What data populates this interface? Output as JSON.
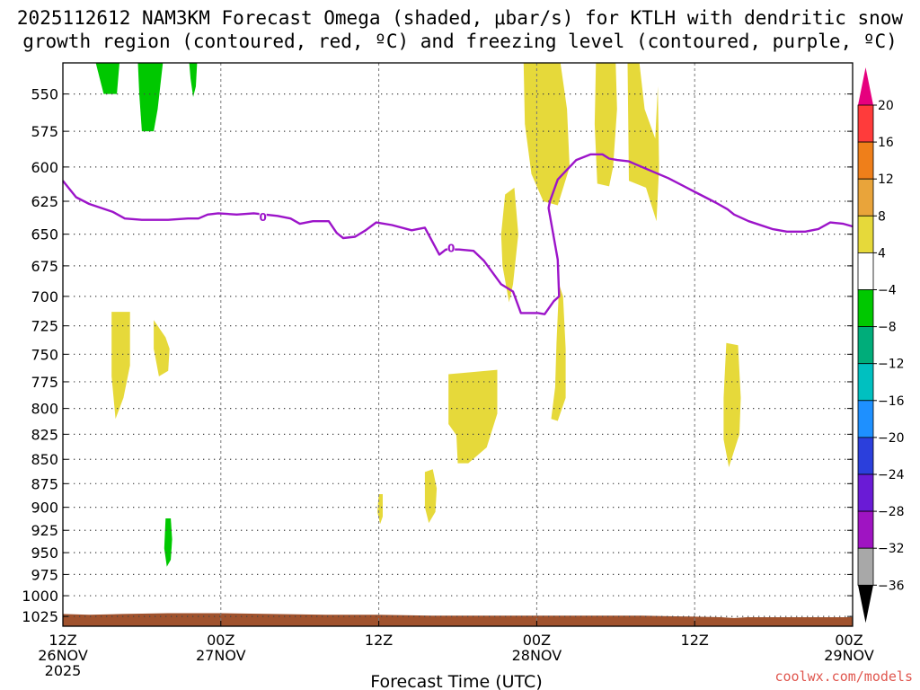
{
  "chart_data": {
    "type": "heatmap",
    "title_line1": "2025112612 NAM3KM Forecast Omega (shaded, μbar/s) for KTLH with dendritic snow",
    "title_line2": "growth region (contoured, red, ºC) and freezing level (contoured, purple, ºC)",
    "xlabel": "Forecast Time (UTC)",
    "credit": "coolwx.com/models",
    "x_range_hours": [
      0,
      60
    ],
    "x_ticks": [
      {
        "h": 0,
        "l1": "12Z",
        "l2": "26NOV",
        "l3": "2025"
      },
      {
        "h": 12,
        "l1": "00Z",
        "l2": "27NOV",
        "l3": ""
      },
      {
        "h": 24,
        "l1": "12Z",
        "l2": "",
        "l3": ""
      },
      {
        "h": 36,
        "l1": "00Z",
        "l2": "28NOV",
        "l3": ""
      },
      {
        "h": 48,
        "l1": "12Z",
        "l2": "",
        "l3": ""
      },
      {
        "h": 60,
        "l1": "00Z",
        "l2": "29NOV",
        "l3": ""
      }
    ],
    "y_ticks": [
      "550",
      "575",
      "600",
      "625",
      "650",
      "675",
      "700",
      "725",
      "750",
      "775",
      "800",
      "825",
      "850",
      "875",
      "900",
      "925",
      "950",
      "975",
      "1000",
      "1025"
    ],
    "y_axis_top_hpa": 530,
    "y_axis_bottom_hpa": 1037,
    "colorbar": {
      "labels": [
        "20",
        "16",
        "12",
        "8",
        "4",
        "−4",
        "−8",
        "−12",
        "−16",
        "−20",
        "−24",
        "−28",
        "−32",
        "−36"
      ],
      "colors": [
        "#ff3b3b",
        "#ef7f1a",
        "#e9a43a",
        "#e6d93a",
        "#ffffff",
        "#00c800",
        "#00ad7a",
        "#00c0c0",
        "#1e90ff",
        "#2b3fdc",
        "#6a1bd6",
        "#9f14c2",
        "#a8a8a8"
      ],
      "top_arrow": "#e6007e",
      "bottom_arrow": "#000000"
    },
    "omega_regions": [
      {
        "value": -6,
        "color": "#00c800",
        "points": [
          [
            2.5,
            530
          ],
          [
            4.3,
            530
          ],
          [
            4.1,
            550
          ],
          [
            3.1,
            550
          ]
        ]
      },
      {
        "value": -6,
        "color": "#00c800",
        "points": [
          [
            5.7,
            530
          ],
          [
            7.6,
            530
          ],
          [
            7.2,
            560
          ],
          [
            6.9,
            575
          ],
          [
            6.0,
            575
          ],
          [
            5.8,
            550
          ]
        ]
      },
      {
        "value": -6,
        "color": "#00c800",
        "points": [
          [
            9.6,
            530
          ],
          [
            10.2,
            530
          ],
          [
            10.1,
            545
          ],
          [
            9.9,
            552
          ],
          [
            9.7,
            540
          ]
        ]
      },
      {
        "value": -6,
        "color": "#00c800",
        "points": [
          [
            7.8,
            912
          ],
          [
            8.2,
            912
          ],
          [
            8.3,
            935
          ],
          [
            8.2,
            958
          ],
          [
            7.9,
            966
          ],
          [
            7.7,
            945
          ]
        ]
      },
      {
        "value": 5,
        "color": "#e6d93a",
        "points": [
          [
            3.7,
            713
          ],
          [
            5.1,
            713
          ],
          [
            5.1,
            760
          ],
          [
            4.6,
            790
          ],
          [
            4.0,
            810
          ],
          [
            3.7,
            770
          ]
        ]
      },
      {
        "value": 5,
        "color": "#e6d93a",
        "points": [
          [
            6.9,
            720
          ],
          [
            7.8,
            735
          ],
          [
            8.1,
            745
          ],
          [
            8.0,
            765
          ],
          [
            7.3,
            770
          ],
          [
            6.9,
            745
          ]
        ]
      },
      {
        "value": 5,
        "color": "#e6d93a",
        "points": [
          [
            24.0,
            886
          ],
          [
            24.3,
            886
          ],
          [
            24.3,
            910
          ],
          [
            24.1,
            918
          ],
          [
            23.9,
            905
          ]
        ]
      },
      {
        "value": 5,
        "color": "#e6d93a",
        "points": [
          [
            27.5,
            863
          ],
          [
            28.1,
            860
          ],
          [
            28.4,
            880
          ],
          [
            28.3,
            905
          ],
          [
            27.8,
            917
          ],
          [
            27.5,
            900
          ]
        ]
      },
      {
        "value": 5,
        "color": "#e6d93a",
        "points": [
          [
            29.3,
            768
          ],
          [
            33.0,
            764
          ],
          [
            33.0,
            805
          ],
          [
            32.2,
            838
          ],
          [
            30.8,
            854
          ],
          [
            30.0,
            854
          ],
          [
            29.9,
            826
          ],
          [
            29.3,
            815
          ]
        ]
      },
      {
        "value": 5,
        "color": "#e6d93a",
        "points": [
          [
            33.6,
            620
          ],
          [
            34.3,
            615
          ],
          [
            34.6,
            650
          ],
          [
            34.2,
            690
          ],
          [
            33.9,
            705
          ],
          [
            33.4,
            675
          ],
          [
            33.3,
            650
          ]
        ]
      },
      {
        "value": 5,
        "color": "#e6d93a",
        "points": [
          [
            35.0,
            530
          ],
          [
            37.8,
            530
          ],
          [
            38.3,
            560
          ],
          [
            38.5,
            600
          ],
          [
            37.6,
            628
          ],
          [
            36.5,
            625
          ],
          [
            35.6,
            605
          ],
          [
            35.1,
            570
          ]
        ]
      },
      {
        "value": 5,
        "color": "#e6d93a",
        "points": [
          [
            37.7,
            690
          ],
          [
            38.0,
            700
          ],
          [
            38.2,
            745
          ],
          [
            38.2,
            790
          ],
          [
            37.6,
            812
          ],
          [
            37.1,
            810
          ],
          [
            37.4,
            780
          ],
          [
            37.5,
            740
          ]
        ]
      },
      {
        "value": 5,
        "color": "#e6d93a",
        "points": [
          [
            40.5,
            530
          ],
          [
            42.0,
            530
          ],
          [
            42.1,
            560
          ],
          [
            41.8,
            600
          ],
          [
            41.5,
            614
          ],
          [
            40.6,
            612
          ],
          [
            40.4,
            570
          ]
        ]
      },
      {
        "value": 5,
        "color": "#e6d93a",
        "points": [
          [
            42.9,
            530
          ],
          [
            43.8,
            530
          ],
          [
            44.2,
            560
          ],
          [
            45.0,
            580
          ],
          [
            45.2,
            545
          ],
          [
            45.3,
            600
          ],
          [
            45.1,
            640
          ],
          [
            44.3,
            615
          ],
          [
            43.0,
            610
          ]
        ]
      },
      {
        "value": 5,
        "color": "#e6d93a",
        "points": [
          [
            50.4,
            740
          ],
          [
            51.3,
            742
          ],
          [
            51.5,
            790
          ],
          [
            51.4,
            825
          ],
          [
            50.6,
            858
          ],
          [
            50.2,
            830
          ],
          [
            50.2,
            790
          ]
        ]
      }
    ],
    "freezing_level": {
      "label": "0",
      "main_line": [
        [
          0,
          610
        ],
        [
          1,
          622
        ],
        [
          2,
          627
        ],
        [
          3.8,
          633
        ],
        [
          4.7,
          638
        ],
        [
          6,
          639
        ],
        [
          8,
          639
        ],
        [
          9.5,
          638
        ],
        [
          10.3,
          638
        ],
        [
          11,
          635
        ],
        [
          11.8,
          634
        ],
        [
          13.2,
          635
        ],
        [
          14.5,
          634
        ],
        [
          16.3,
          636
        ],
        [
          17.3,
          638
        ],
        [
          18,
          642
        ],
        [
          19,
          640
        ],
        [
          20.2,
          640
        ],
        [
          20.8,
          649
        ],
        [
          21.3,
          653
        ],
        [
          22.2,
          652
        ],
        [
          23,
          647
        ],
        [
          23.8,
          641
        ],
        [
          25,
          643
        ],
        [
          26.5,
          647
        ],
        [
          27.5,
          645
        ],
        [
          28.6,
          666
        ],
        [
          29.1,
          662
        ],
        [
          30.1,
          662
        ],
        [
          31.2,
          663
        ],
        [
          32,
          671
        ],
        [
          33.3,
          690
        ],
        [
          34.2,
          696
        ],
        [
          34.8,
          714
        ],
        [
          35.6,
          714
        ],
        [
          36.1,
          714
        ],
        [
          36.6,
          715
        ],
        [
          37.3,
          704
        ],
        [
          37.7,
          700
        ],
        [
          37.6,
          670
        ],
        [
          36.9,
          630
        ],
        [
          37,
          625
        ],
        [
          37.6,
          609
        ],
        [
          39,
          595
        ],
        [
          40.1,
          591
        ],
        [
          41,
          591
        ],
        [
          41.5,
          594
        ],
        [
          42.1,
          595
        ],
        [
          43,
          596
        ],
        [
          43.5,
          598
        ],
        [
          46,
          608
        ],
        [
          48,
          618
        ],
        [
          49.6,
          626
        ],
        [
          50.5,
          631
        ],
        [
          51,
          635
        ],
        [
          52.1,
          640
        ],
        [
          53.9,
          646
        ],
        [
          55,
          648
        ],
        [
          56.4,
          648
        ],
        [
          57.4,
          646
        ],
        [
          58.3,
          641
        ],
        [
          59.3,
          642
        ],
        [
          60,
          644
        ]
      ],
      "label_positions": [
        [
          15.2,
          637
        ],
        [
          29.5,
          661
        ]
      ]
    },
    "surface_terrain": {
      "color": "#a0522d",
      "top_edge": [
        [
          0,
          1022
        ],
        [
          2,
          1023
        ],
        [
          4.5,
          1022
        ],
        [
          8,
          1021
        ],
        [
          12,
          1021
        ],
        [
          16,
          1022
        ],
        [
          20,
          1023
        ],
        [
          24,
          1023
        ],
        [
          28,
          1024
        ],
        [
          32,
          1024
        ],
        [
          36,
          1024
        ],
        [
          40,
          1024
        ],
        [
          44,
          1024
        ],
        [
          47,
          1025
        ],
        [
          50,
          1026
        ],
        [
          51,
          1027
        ],
        [
          52,
          1026
        ],
        [
          56,
          1026
        ],
        [
          60,
          1026
        ]
      ]
    }
  }
}
